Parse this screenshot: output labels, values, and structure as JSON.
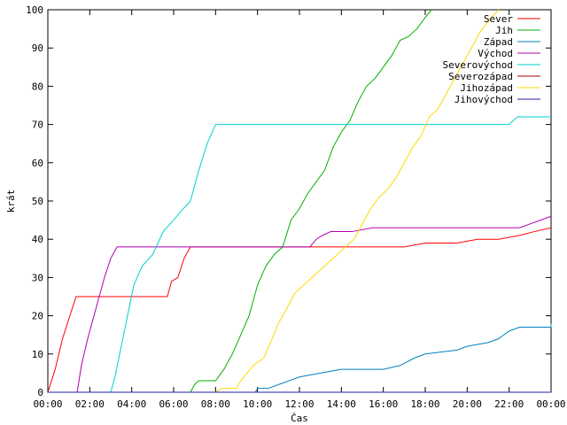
{
  "chart_data": {
    "type": "line",
    "xlabel": "Čas",
    "ylabel": "krát",
    "xlim_hours": [
      0,
      24
    ],
    "ylim": [
      0,
      100
    ],
    "x_ticks": [
      "00:00",
      "02:00",
      "04:00",
      "06:00",
      "08:00",
      "10:00",
      "12:00",
      "14:00",
      "16:00",
      "18:00",
      "20:00",
      "22:00",
      "00:00"
    ],
    "y_ticks": [
      0,
      10,
      20,
      30,
      40,
      50,
      60,
      70,
      80,
      90,
      100
    ],
    "grid": false,
    "legend_position": "top-right",
    "x_unit": "hours since 00:00",
    "series": [
      {
        "name": "Sever",
        "color": "#ff0000",
        "points": [
          [
            0,
            0
          ],
          [
            0.35,
            6
          ],
          [
            0.7,
            14
          ],
          [
            1.05,
            20
          ],
          [
            1.35,
            25
          ],
          [
            5.7,
            25
          ],
          [
            5.9,
            29
          ],
          [
            6.2,
            30
          ],
          [
            6.5,
            35
          ],
          [
            6.8,
            38
          ],
          [
            17.0,
            38
          ],
          [
            18.0,
            39
          ],
          [
            19.5,
            39
          ],
          [
            20.5,
            40
          ],
          [
            21.5,
            40
          ],
          [
            22.5,
            41
          ],
          [
            23.2,
            42
          ],
          [
            24,
            43
          ]
        ]
      },
      {
        "name": "Jih",
        "color": "#00b000",
        "points": [
          [
            0,
            0
          ],
          [
            6.8,
            0
          ],
          [
            7.0,
            2
          ],
          [
            7.2,
            3
          ],
          [
            8.0,
            3
          ],
          [
            8.4,
            6
          ],
          [
            8.8,
            10
          ],
          [
            9.2,
            15
          ],
          [
            9.6,
            20
          ],
          [
            10.0,
            28
          ],
          [
            10.4,
            33
          ],
          [
            10.8,
            36
          ],
          [
            11.2,
            38
          ],
          [
            11.6,
            45
          ],
          [
            12.0,
            48
          ],
          [
            12.4,
            52
          ],
          [
            12.8,
            55
          ],
          [
            13.2,
            58
          ],
          [
            13.6,
            64
          ],
          [
            14.0,
            68
          ],
          [
            14.4,
            71
          ],
          [
            14.8,
            76
          ],
          [
            15.2,
            80
          ],
          [
            15.6,
            82
          ],
          [
            16.0,
            85
          ],
          [
            16.4,
            88
          ],
          [
            16.8,
            92
          ],
          [
            17.2,
            93
          ],
          [
            17.6,
            95
          ],
          [
            18.0,
            98
          ],
          [
            18.3,
            100
          ]
        ]
      },
      {
        "name": "Západ",
        "color": "#0080c0",
        "points": [
          [
            0,
            0
          ],
          [
            9.9,
            0
          ],
          [
            10.0,
            1
          ],
          [
            10.5,
            1
          ],
          [
            11.0,
            2
          ],
          [
            11.5,
            3
          ],
          [
            12.0,
            4
          ],
          [
            13.0,
            5
          ],
          [
            14.0,
            6
          ],
          [
            16.0,
            6
          ],
          [
            16.8,
            7
          ],
          [
            17.5,
            9
          ],
          [
            18.0,
            10
          ],
          [
            19.5,
            11
          ],
          [
            20.0,
            12
          ],
          [
            21.0,
            13
          ],
          [
            21.5,
            14
          ],
          [
            22.0,
            16
          ],
          [
            22.5,
            17
          ],
          [
            24,
            17
          ],
          [
            24,
            18
          ]
        ]
      },
      {
        "name": "Východ",
        "color": "#b000b0",
        "points": [
          [
            0,
            0
          ],
          [
            1.4,
            0
          ],
          [
            1.6,
            7
          ],
          [
            1.9,
            14
          ],
          [
            2.3,
            22
          ],
          [
            2.7,
            30
          ],
          [
            3.0,
            35
          ],
          [
            3.3,
            38
          ],
          [
            12.5,
            38
          ],
          [
            12.8,
            40
          ],
          [
            13.1,
            41
          ],
          [
            13.5,
            42
          ],
          [
            14.5,
            42
          ],
          [
            15.5,
            43
          ],
          [
            22.5,
            43
          ],
          [
            23.0,
            44
          ],
          [
            23.5,
            45
          ],
          [
            24,
            46
          ]
        ]
      },
      {
        "name": "Severovýchod",
        "color": "#00d0d0",
        "points": [
          [
            0,
            0
          ],
          [
            3.0,
            0
          ],
          [
            3.2,
            4
          ],
          [
            3.5,
            12
          ],
          [
            3.8,
            20
          ],
          [
            4.1,
            28
          ],
          [
            4.5,
            33
          ],
          [
            5.0,
            36
          ],
          [
            5.5,
            42
          ],
          [
            6.0,
            45
          ],
          [
            6.3,
            47
          ],
          [
            6.8,
            50
          ],
          [
            7.2,
            58
          ],
          [
            7.6,
            65
          ],
          [
            8.0,
            70
          ],
          [
            22.0,
            70
          ],
          [
            22.2,
            71
          ],
          [
            22.4,
            72
          ],
          [
            24,
            72
          ]
        ]
      },
      {
        "name": "Severozápad",
        "color": "#a00000",
        "points": [
          [
            0,
            0
          ],
          [
            24,
            0
          ]
        ]
      },
      {
        "name": "Jihozápad",
        "color": "#ffd800",
        "points": [
          [
            0,
            0
          ],
          [
            8.0,
            0
          ],
          [
            8.3,
            1
          ],
          [
            9.0,
            1
          ],
          [
            9.2,
            3
          ],
          [
            9.5,
            5
          ],
          [
            9.8,
            7
          ],
          [
            10.3,
            9
          ],
          [
            10.7,
            14
          ],
          [
            11.0,
            18
          ],
          [
            11.4,
            22
          ],
          [
            11.8,
            26
          ],
          [
            12.2,
            28
          ],
          [
            12.6,
            30
          ],
          [
            13.0,
            32
          ],
          [
            13.4,
            34
          ],
          [
            13.8,
            36
          ],
          [
            14.2,
            38
          ],
          [
            14.6,
            40
          ],
          [
            15.0,
            44
          ],
          [
            15.4,
            48
          ],
          [
            15.8,
            51
          ],
          [
            16.2,
            53
          ],
          [
            16.6,
            56
          ],
          [
            17.0,
            60
          ],
          [
            17.4,
            64
          ],
          [
            17.8,
            67
          ],
          [
            18.2,
            72
          ],
          [
            18.6,
            74
          ],
          [
            19.0,
            78
          ],
          [
            19.4,
            82
          ],
          [
            19.8,
            86
          ],
          [
            20.2,
            90
          ],
          [
            20.6,
            94
          ],
          [
            21.0,
            97
          ],
          [
            21.5,
            100
          ]
        ]
      },
      {
        "name": "Jihovýchod",
        "color": "#2020a0",
        "points": [
          [
            0,
            0
          ],
          [
            24,
            0
          ]
        ]
      }
    ]
  }
}
